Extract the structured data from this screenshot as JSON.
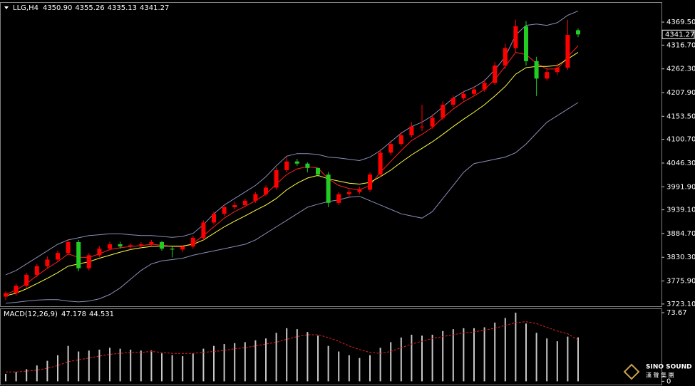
{
  "chart_data": [
    {
      "type": "candlestick",
      "title": "LLG,H4",
      "header_values": [
        "4350.90",
        "4355.26",
        "4335.13",
        "4341.27"
      ],
      "open": [
        3740,
        3748,
        3765,
        3790,
        3810,
        3825,
        3840,
        3865,
        3805,
        3835,
        3850,
        3860,
        3855,
        3858,
        3860,
        3865,
        3850,
        3848,
        3855,
        3875,
        3910,
        3930,
        3945,
        3950,
        3960,
        3975,
        3990,
        4030,
        4050,
        4045,
        4035,
        4020,
        3955,
        3975,
        3980,
        3985,
        4020,
        4070,
        4090,
        4110,
        4130,
        4130,
        4150,
        4180,
        4195,
        4205,
        4215,
        4230,
        4270,
        4310,
        4360,
        4280,
        4240,
        4255,
        4265,
        4350.9
      ],
      "high": [
        3752,
        3770,
        3795,
        3815,
        3832,
        3846,
        3872,
        3870,
        3840,
        3856,
        3866,
        3866,
        3862,
        3865,
        3870,
        3868,
        3856,
        3858,
        3880,
        3915,
        3935,
        3950,
        3958,
        3965,
        3980,
        3995,
        4036,
        4060,
        4056,
        4048,
        4030,
        4026,
        3980,
        3985,
        3992,
        4025,
        4078,
        4098,
        4118,
        4140,
        4180,
        4158,
        4188,
        4202,
        4212,
        4222,
        4238,
        4278,
        4320,
        4375,
        4372,
        4290,
        4262,
        4275,
        4375,
        4355.26
      ],
      "low": [
        3732,
        3742,
        3760,
        3785,
        3805,
        3820,
        3835,
        3798,
        3800,
        3830,
        3846,
        3850,
        3848,
        3852,
        3855,
        3845,
        3830,
        3842,
        3850,
        3870,
        3905,
        3925,
        3940,
        3945,
        3955,
        3970,
        3985,
        4025,
        4040,
        4025,
        4015,
        3945,
        3950,
        3968,
        3975,
        3980,
        4015,
        4064,
        4085,
        4105,
        4120,
        4125,
        4144,
        4175,
        4190,
        4200,
        4210,
        4225,
        4262,
        4300,
        4270,
        4200,
        4235,
        4248,
        4260,
        4335.13
      ],
      "close": [
        3748,
        3765,
        3790,
        3810,
        3825,
        3840,
        3865,
        3805,
        3835,
        3850,
        3860,
        3855,
        3858,
        3860,
        3865,
        3850,
        3848,
        3855,
        3875,
        3910,
        3930,
        3945,
        3950,
        3960,
        3975,
        3990,
        4030,
        4050,
        4045,
        4035,
        4020,
        3955,
        3975,
        3980,
        3985,
        4020,
        4070,
        4090,
        4110,
        4130,
        4130,
        4150,
        4180,
        4195,
        4205,
        4215,
        4230,
        4270,
        4310,
        4360,
        4280,
        4240,
        4255,
        4265,
        4340,
        4341.27
      ],
      "up_color": "#ff0000",
      "down_color": "#22cc22",
      "overlays": [
        {
          "color": "#8a8fb8",
          "values": [
            3790,
            3800,
            3815,
            3830,
            3845,
            3860,
            3870,
            3875,
            3880,
            3882,
            3884,
            3884,
            3882,
            3880,
            3880,
            3878,
            3876,
            3878,
            3885,
            3905,
            3930,
            3950,
            3965,
            3980,
            3995,
            4015,
            4040,
            4062,
            4068,
            4068,
            4066,
            4060,
            4058,
            4055,
            4052,
            4060,
            4075,
            4095,
            4115,
            4130,
            4140,
            4155,
            4175,
            4195,
            4210,
            4220,
            4235,
            4260,
            4290,
            4340,
            4362,
            4365,
            4362,
            4368,
            4385,
            4395
          ]
        },
        {
          "color": "#8a8fb8",
          "values": [
            3725,
            3727,
            3730,
            3732,
            3733,
            3733,
            3730,
            3728,
            3730,
            3735,
            3745,
            3760,
            3780,
            3800,
            3815,
            3822,
            3825,
            3828,
            3835,
            3840,
            3845,
            3850,
            3855,
            3860,
            3870,
            3885,
            3900,
            3915,
            3930,
            3945,
            3952,
            3958,
            3962,
            3968,
            3970,
            3960,
            3950,
            3940,
            3930,
            3925,
            3920,
            3935,
            3965,
            3995,
            4025,
            4045,
            4050,
            4055,
            4060,
            4070,
            4090,
            4115,
            4140,
            4155,
            4170,
            4185
          ]
        },
        {
          "color": "#ff2020",
          "values": [
            3745,
            3755,
            3770,
            3788,
            3805,
            3820,
            3838,
            3830,
            3830,
            3838,
            3848,
            3852,
            3855,
            3857,
            3860,
            3858,
            3855,
            3855,
            3862,
            3880,
            3900,
            3920,
            3935,
            3947,
            3960,
            3975,
            3998,
            4020,
            4033,
            4038,
            4035,
            4010,
            3995,
            3988,
            3985,
            3995,
            4025,
            4050,
            4075,
            4098,
            4112,
            4128,
            4150,
            4170,
            4187,
            4200,
            4215,
            4238,
            4268,
            4300,
            4295,
            4275,
            4262,
            4262,
            4290,
            4315
          ]
        },
        {
          "color": "#ffff40",
          "values": [
            3742,
            3748,
            3758,
            3770,
            3782,
            3795,
            3810,
            3815,
            3820,
            3828,
            3835,
            3842,
            3848,
            3852,
            3855,
            3856,
            3856,
            3856,
            3860,
            3870,
            3885,
            3900,
            3913,
            3925,
            3938,
            3950,
            3965,
            3985,
            4000,
            4012,
            4018,
            4010,
            4005,
            4000,
            3998,
            4002,
            4015,
            4030,
            4048,
            4065,
            4080,
            4095,
            4112,
            4130,
            4147,
            4163,
            4180,
            4200,
            4222,
            4250,
            4265,
            4268,
            4268,
            4270,
            4285,
            4300
          ]
        }
      ],
      "ylim": [
        3718,
        4412
      ],
      "yticks": [
        {
          "value": 4369.5,
          "label": "4369.50"
        },
        {
          "value": 4316.7,
          "label": "4316.70"
        },
        {
          "value": 4262.3,
          "label": "4262.30"
        },
        {
          "value": 4207.9,
          "label": "4207.90"
        },
        {
          "value": 4153.5,
          "label": "4153.50"
        },
        {
          "value": 4100.7,
          "label": "4100.70"
        },
        {
          "value": 4046.3,
          "label": "4046.30"
        },
        {
          "value": 3991.9,
          "label": "3991.90"
        },
        {
          "value": 3939.1,
          "label": "3939.10"
        },
        {
          "value": 3884.7,
          "label": "3884.70"
        },
        {
          "value": 3830.3,
          "label": "3830.30"
        },
        {
          "value": 3775.9,
          "label": "3775.90"
        },
        {
          "value": 3723.1,
          "label": "3723.10"
        }
      ]
    },
    {
      "type": "macd",
      "title": "MACD(12,26,9)",
      "series": [
        {
          "color": "#c8c8c8",
          "values": [
            8,
            10,
            13,
            17,
            22,
            28,
            38,
            32,
            33,
            34,
            36,
            35,
            34,
            33,
            33,
            30,
            28,
            27,
            30,
            35,
            38,
            40,
            41,
            42,
            44,
            46,
            52,
            57,
            56,
            53,
            49,
            38,
            32,
            28,
            25,
            28,
            36,
            42,
            47,
            50,
            49,
            50,
            54,
            56,
            57,
            57,
            58,
            63,
            68,
            73.67,
            62,
            52,
            46,
            43,
            48,
            47.178
          ]
        },
        {
          "color": "#e02020",
          "values": [
            10,
            10,
            11,
            12,
            14,
            17,
            21,
            23,
            25,
            27,
            29,
            30,
            31,
            31,
            32,
            31,
            30,
            30,
            30,
            31,
            32,
            33,
            35,
            36,
            38,
            40,
            42,
            45,
            48,
            50,
            50,
            47,
            43,
            38,
            34,
            31,
            30,
            32,
            36,
            40,
            43,
            46,
            48,
            50,
            52,
            53,
            55,
            57,
            60,
            63,
            64,
            62,
            58,
            54,
            51,
            44.531
          ]
        }
      ],
      "ylim": [
        -2,
        76
      ],
      "yticks": [
        73.67,
        0
      ]
    }
  ],
  "watermark": {
    "brand": "SINO SOUND",
    "sub": "漢 聲 集 團"
  }
}
